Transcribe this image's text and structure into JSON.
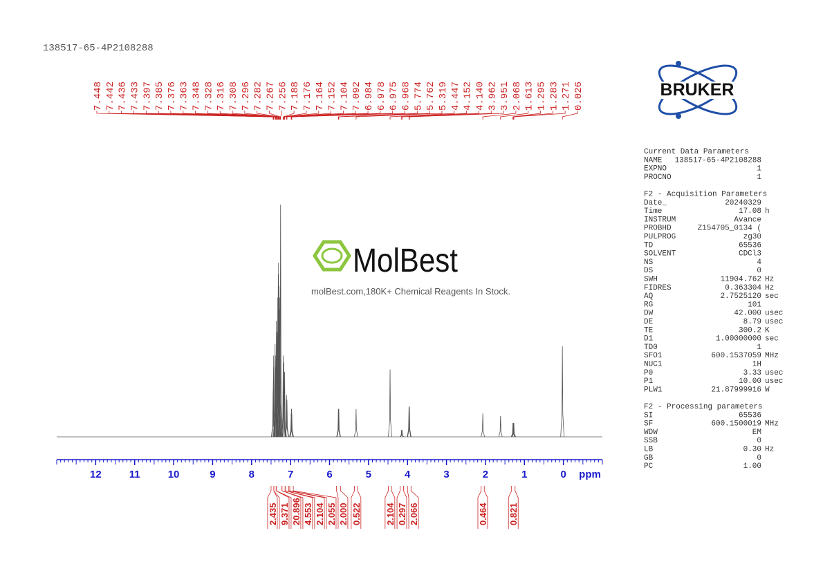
{
  "header": {
    "sample": "138517-65-4P2108288"
  },
  "watermark": {
    "brand": "MolBest",
    "tagline": "molBest.com,180K+ Chemical Reagents In Stock."
  },
  "logo": {
    "text": "BRUKER"
  },
  "chart_data": {
    "type": "nmr",
    "xlabel": "ppm",
    "xlim": [
      13,
      -1
    ],
    "xticks": [
      12,
      11,
      10,
      9,
      8,
      7,
      6,
      5,
      4,
      3,
      2,
      1,
      0
    ],
    "ylim": [
      0,
      100
    ],
    "line_color": "#555555",
    "label_color": "#cc2222",
    "axis_color": "#1a1acc",
    "peaks": {
      "ppm": [
        7.448,
        7.442,
        7.436,
        7.433,
        7.397,
        7.385,
        7.376,
        7.363,
        7.348,
        7.328,
        7.316,
        7.308,
        7.296,
        7.282,
        7.267,
        7.256,
        7.188,
        7.176,
        7.164,
        7.152,
        7.104,
        7.092,
        6.984,
        6.978,
        6.975,
        6.968,
        5.774,
        5.762,
        5.319,
        4.447,
        4.152,
        4.14,
        3.962,
        3.951,
        2.068,
        1.613,
        1.295,
        1.283,
        1.271,
        0.026
      ],
      "labels": [
        "7.448",
        "7.442",
        "7.436",
        "7.433",
        "7.397",
        "7.385",
        "7.376",
        "7.363",
        "7.348",
        "7.328",
        "7.316",
        "7.308",
        "7.296",
        "7.282",
        "7.267",
        "7.256",
        "7.188",
        "7.176",
        "7.164",
        "7.152",
        "7.104",
        "7.092",
        "6.984",
        "6.978",
        "6.975",
        "6.968",
        "5.774",
        "5.762",
        "5.319",
        "4.447",
        "4.152",
        "4.140",
        "3.962",
        "3.951",
        "2.068",
        "1.613",
        "1.295",
        "1.283",
        "1.271",
        "0.026"
      ],
      "heights": [
        20,
        25,
        30,
        35,
        40,
        30,
        35,
        50,
        45,
        60,
        70,
        75,
        65,
        60,
        55,
        100,
        35,
        32,
        20,
        28,
        18,
        16,
        10,
        12,
        12,
        10,
        12,
        12,
        12,
        29,
        3,
        3,
        13,
        13,
        10,
        9,
        6,
        6,
        6,
        39
      ]
    },
    "integrals": {
      "ranges": [
        [
          7.5,
          7.43
        ],
        [
          7.43,
          7.37
        ],
        [
          7.37,
          7.22
        ],
        [
          7.22,
          7.14
        ],
        [
          7.14,
          7.05
        ],
        [
          7.02,
          6.93
        ],
        [
          5.82,
          5.72
        ],
        [
          5.36,
          5.28
        ],
        [
          4.49,
          4.41
        ],
        [
          4.19,
          4.1
        ],
        [
          4.0,
          3.91
        ],
        [
          2.11,
          2.03
        ],
        [
          1.33,
          1.24
        ]
      ],
      "values": [
        2.435,
        9.371,
        20.896,
        4.553,
        2.104,
        2.055,
        2,
        0.522,
        2.104,
        0.297,
        2.066,
        0.464,
        0.821
      ],
      "value_labels": [
        "2.435",
        "9.371",
        "20.896",
        "4.553",
        "2.104",
        "2.055",
        "2.000",
        "0.522",
        "2.104",
        "0.297",
        "2.066",
        "0.464",
        "0.821"
      ]
    }
  },
  "parameters": [
    {
      "title": "Current Data Parameters",
      "rows": [
        [
          "NAME",
          "138517-65-4P2108288"
        ],
        [
          "EXPNO",
          "1"
        ],
        [
          "PROCNO",
          "1"
        ]
      ]
    },
    {
      "title": "F2 - Acquisition Parameters",
      "rows": [
        [
          "Date_",
          "20240329"
        ],
        [
          "Time",
          "17.08",
          "h"
        ],
        [
          "INSTRUM",
          "Avance"
        ],
        [
          "PROBHD",
          "Z154705_0134 ("
        ],
        [
          "PULPROG",
          "zg30"
        ],
        [
          "TD",
          "65536"
        ],
        [
          "SOLVENT",
          "CDCl3"
        ],
        [
          "NS",
          "4"
        ],
        [
          "DS",
          "0"
        ],
        [
          "SWH",
          "11904.762",
          "Hz"
        ],
        [
          "FIDRES",
          "0.363304",
          "Hz"
        ],
        [
          "AQ",
          "2.7525120",
          "sec"
        ],
        [
          "RG",
          "101"
        ],
        [
          "DW",
          "42.000",
          "usec"
        ],
        [
          "DE",
          "8.79",
          "usec"
        ],
        [
          "TE",
          "300.2",
          "K"
        ],
        [
          "D1",
          "1.00000000",
          "sec"
        ],
        [
          "TD0",
          "1"
        ],
        [
          "SFO1",
          "600.1537059",
          "MHz"
        ],
        [
          "NUC1",
          "1H"
        ],
        [
          "P0",
          "3.33",
          "usec"
        ],
        [
          "P1",
          "10.00",
          "usec"
        ],
        [
          "PLW1",
          "21.87999916",
          "W"
        ]
      ]
    },
    {
      "title": "F2 - Processing parameters",
      "rows": [
        [
          "SI",
          "65536"
        ],
        [
          "SF",
          "600.1500019",
          "MHz"
        ],
        [
          "WDW",
          "EM"
        ],
        [
          "SSB",
          "0"
        ],
        [
          "LB",
          "0.30",
          "Hz"
        ],
        [
          "GB",
          "0"
        ],
        [
          "PC",
          "1.00"
        ]
      ]
    }
  ]
}
